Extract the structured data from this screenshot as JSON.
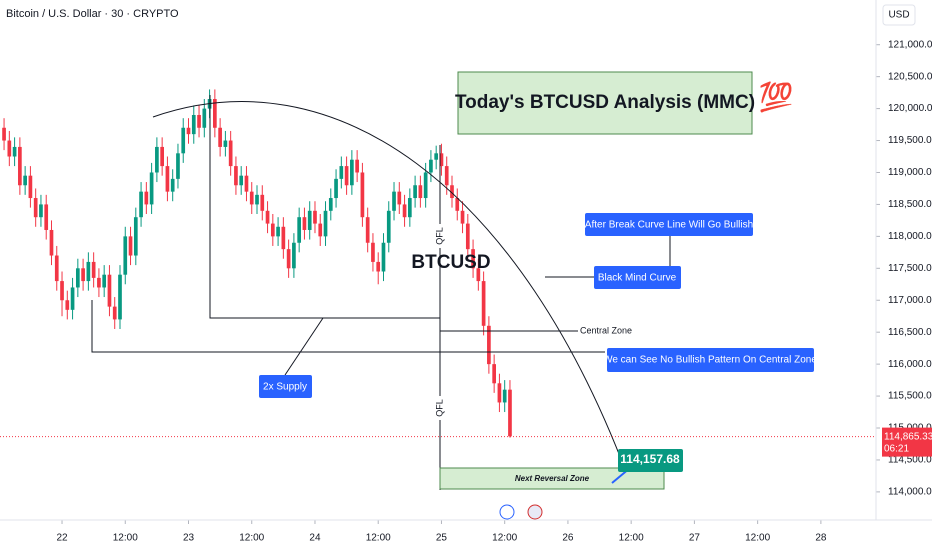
{
  "chart_data": {
    "type": "candlestick",
    "title": "Bitcoin / U.S. Dollar · 30 · CRYPTO",
    "currency": "USD",
    "up_color": "#089981",
    "down_color": "#f23645",
    "x": [
      -11,
      -10,
      -9,
      -8,
      -7,
      -6,
      -5,
      -4,
      -3,
      -2,
      -1,
      0,
      1,
      2,
      3,
      4,
      5,
      6,
      7,
      8,
      9,
      10,
      11,
      12,
      13,
      14,
      15,
      16,
      17,
      18,
      19,
      20,
      21,
      22,
      23,
      24,
      25,
      26,
      27,
      28,
      29,
      30,
      31,
      32,
      33,
      34,
      35,
      36,
      37,
      38,
      39,
      40,
      41,
      42,
      43,
      44,
      45,
      46,
      47,
      48,
      49,
      50,
      51,
      52,
      53,
      54,
      55,
      56,
      57,
      58,
      59,
      60,
      61,
      62,
      63,
      64,
      65,
      66,
      67,
      68,
      69,
      70,
      71,
      72,
      73,
      74,
      75,
      76,
      77,
      78,
      79,
      80,
      81,
      82,
      83,
      84,
      85
    ],
    "open": [
      119700,
      119500,
      119250,
      119400,
      118800,
      118950,
      118600,
      118300,
      118500,
      118100,
      117700,
      117300,
      117000,
      116850,
      117200,
      117500,
      117300,
      117600,
      117350,
      117200,
      117400,
      116900,
      116700,
      117400,
      118000,
      117700,
      118300,
      118700,
      118500,
      119000,
      119400,
      119100,
      118700,
      118900,
      119300,
      119700,
      119600,
      119900,
      119700,
      120000,
      120150,
      119700,
      119400,
      119500,
      119100,
      118800,
      118950,
      118700,
      118500,
      118650,
      118400,
      118200,
      118000,
      118150,
      117800,
      117500,
      117900,
      118300,
      118100,
      118400,
      118200,
      118000,
      118400,
      118600,
      118900,
      119100,
      118800,
      119200,
      119000,
      118300,
      117900,
      117600,
      117450,
      117900,
      118400,
      118700,
      118500,
      118300,
      118600,
      118800,
      118600,
      119000,
      119200,
      119300,
      119100,
      118800,
      118600,
      118400,
      118200,
      117800,
      117500,
      117300,
      116600,
      116000,
      115700,
      115400,
      115600
    ],
    "high": [
      119850,
      119650,
      119550,
      119550,
      119100,
      119100,
      118750,
      118650,
      118650,
      118250,
      117850,
      117450,
      117150,
      117350,
      117650,
      117650,
      117750,
      117750,
      117500,
      117550,
      117550,
      117050,
      117550,
      118150,
      118150,
      118450,
      118850,
      118850,
      119150,
      119550,
      119550,
      119250,
      119050,
      119450,
      119850,
      119850,
      120050,
      120050,
      120150,
      120300,
      120300,
      119850,
      119650,
      119650,
      119250,
      119100,
      119100,
      118850,
      118800,
      118800,
      118550,
      118350,
      118300,
      118300,
      117950,
      118050,
      118450,
      118450,
      118550,
      118550,
      118350,
      118550,
      118750,
      119050,
      119250,
      119250,
      119350,
      119350,
      119150,
      118450,
      118050,
      117750,
      118050,
      118550,
      118850,
      118850,
      118650,
      118750,
      118950,
      118950,
      119150,
      119350,
      119420,
      119450,
      119250,
      118950,
      118750,
      118550,
      118350,
      117950,
      117650,
      117450,
      116750,
      116150,
      115850,
      115750,
      115750
    ],
    "low": [
      119350,
      119100,
      119100,
      118650,
      118650,
      118450,
      118150,
      118150,
      117950,
      117550,
      117150,
      116750,
      116700,
      116700,
      117050,
      117150,
      117150,
      117200,
      117050,
      117050,
      116750,
      116550,
      116550,
      117250,
      117550,
      117550,
      118150,
      118350,
      118350,
      118850,
      118950,
      118550,
      118550,
      118750,
      119150,
      119450,
      119450,
      119550,
      119550,
      119850,
      119550,
      119250,
      119250,
      118950,
      118650,
      118650,
      118550,
      118350,
      118350,
      118250,
      118050,
      117850,
      117850,
      117650,
      117350,
      117350,
      117750,
      117950,
      117950,
      118050,
      117850,
      117850,
      118250,
      118450,
      118750,
      118650,
      118650,
      118850,
      118150,
      117750,
      117450,
      117250,
      117300,
      117750,
      118250,
      118350,
      118150,
      118150,
      118450,
      118450,
      118450,
      118850,
      119050,
      118950,
      118650,
      118450,
      118250,
      118050,
      117650,
      117350,
      117150,
      116450,
      115850,
      115550,
      115250,
      115250,
      114850
    ],
    "close": [
      119500,
      119250,
      119400,
      118800,
      118950,
      118600,
      118300,
      118500,
      118100,
      117700,
      117300,
      117000,
      116850,
      117200,
      117500,
      117300,
      117600,
      117350,
      117200,
      117400,
      116900,
      116700,
      117400,
      118000,
      117700,
      118300,
      118700,
      118500,
      119000,
      119400,
      119100,
      118700,
      118900,
      119300,
      119700,
      119600,
      119900,
      119700,
      120000,
      120150,
      119700,
      119400,
      119500,
      119100,
      118800,
      118950,
      118700,
      118500,
      118650,
      118400,
      118200,
      118000,
      118150,
      117800,
      117500,
      117900,
      118300,
      118100,
      118400,
      118200,
      118000,
      118400,
      118600,
      118900,
      119100,
      118800,
      119200,
      119000,
      118300,
      117900,
      117600,
      117450,
      117900,
      118400,
      118700,
      118500,
      118300,
      118600,
      118800,
      118600,
      119000,
      119200,
      119300,
      119100,
      118800,
      118600,
      118400,
      118200,
      117800,
      117500,
      117300,
      116600,
      116000,
      115700,
      115400,
      115600,
      114870
    ],
    "xlim": [
      -11.77,
      154.27
    ],
    "xticks": [
      {
        "value": 0,
        "label": "22"
      },
      {
        "value": 12,
        "label": "12:00"
      },
      {
        "value": 24,
        "label": "23"
      },
      {
        "value": 36,
        "label": "12:00"
      },
      {
        "value": 48,
        "label": "24"
      },
      {
        "value": 60,
        "label": "12:00"
      },
      {
        "value": 72,
        "label": "25"
      },
      {
        "value": 84,
        "label": "12:00"
      },
      {
        "value": 96,
        "label": "26"
      },
      {
        "value": 108,
        "label": "12:00"
      },
      {
        "value": 120,
        "label": "27"
      },
      {
        "value": 132,
        "label": "12:00"
      },
      {
        "value": 144,
        "label": "28"
      }
    ],
    "ylim": [
      113560,
      121700
    ],
    "yticks": [
      {
        "value": 114000,
        "label": "114,000.00"
      },
      {
        "value": 114500,
        "label": "114,500.00"
      },
      {
        "value": 115000,
        "label": "115,000.00"
      },
      {
        "value": 115500,
        "label": "115,500.00"
      },
      {
        "value": 116000,
        "label": "116,000.00"
      },
      {
        "value": 116500,
        "label": "116,500.00"
      },
      {
        "value": 117000,
        "label": "117,000.00"
      },
      {
        "value": 117500,
        "label": "117,500.00"
      },
      {
        "value": 118000,
        "label": "118,000.00"
      },
      {
        "value": 118500,
        "label": "118,500.00"
      },
      {
        "value": 119000,
        "label": "119,000.00"
      },
      {
        "value": 119500,
        "label": "119,500.00"
      },
      {
        "value": 120000,
        "label": "120,000.00"
      },
      {
        "value": 120500,
        "label": "120,500.00"
      },
      {
        "value": 121000,
        "label": "121,000.00"
      }
    ],
    "last_price": {
      "value": 114865.33,
      "label": "114,865.33"
    },
    "countdown": "06:21",
    "annotations": {
      "analysis_title": "Today's BTCUSD Analysis (MMC)",
      "emoji": "💯",
      "symbol": "BTCUSD",
      "qfl_upper": "QFL",
      "qfl_lower": "QFL",
      "after_break": "After Break Curve Line Will Go Bullish",
      "black_mind_curve": "Black Mind Curve",
      "central_zone": "Central Zone",
      "no_bullish": "We can See No Bullish Pattern On Central Zone",
      "supply": "2x Supply",
      "reversal_zone": "Next Reversal Zone",
      "target_price": "114,157.68"
    }
  }
}
